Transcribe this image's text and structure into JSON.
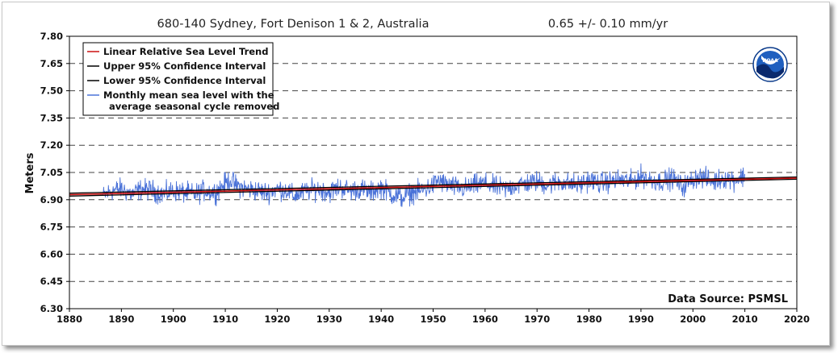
{
  "chart_data": {
    "type": "line",
    "title": "680-140 Sydney, Fort Denison 1 & 2, Australia",
    "subtitle": "0.65 +/-  0.10 mm/yr",
    "xlabel": "",
    "ylabel": "Meters",
    "xlim": [
      1880,
      2020
    ],
    "ylim": [
      6.3,
      7.8
    ],
    "x_ticks": [
      "1880",
      "1890",
      "1900",
      "1910",
      "1920",
      "1930",
      "1940",
      "1950",
      "1960",
      "1970",
      "1980",
      "1990",
      "2000",
      "2010",
      "2020"
    ],
    "y_ticks": [
      "7.80",
      "7.65",
      "7.50",
      "7.35",
      "7.20",
      "7.05",
      "6.90",
      "6.75",
      "6.60",
      "6.45",
      "6.30"
    ],
    "grid": "horizontal dashed",
    "legend_position": "top-left",
    "series": [
      {
        "name": "Linear Relative Sea Level Trend",
        "color": "#cc1111",
        "x": [
          1880,
          2020
        ],
        "y": [
          6.928,
          7.019
        ]
      },
      {
        "name": "Upper 95% Confidence Interval",
        "color": "#000000",
        "x": [
          1880,
          2020
        ],
        "y": [
          6.936,
          7.025
        ]
      },
      {
        "name": "Lower 95% Confidence Interval",
        "color": "#000000",
        "x": [
          1880,
          2020
        ],
        "y": [
          6.92,
          7.013
        ]
      },
      {
        "name": "Monthly mean sea level with the average seasonal cycle removed",
        "legend_lines": [
          "Monthly mean sea level with the",
          "average seasonal cycle removed"
        ],
        "color": "#4a72d8",
        "x": [
          1886.5,
          1888,
          1890,
          1892,
          1894,
          1896,
          1898,
          1900,
          1902,
          1904,
          1906,
          1908,
          1910,
          1911,
          1912,
          1914,
          1916,
          1918,
          1920,
          1922,
          1923,
          1924,
          1926,
          1928,
          1930,
          1932,
          1934,
          1936,
          1938,
          1940,
          1942,
          1944,
          1946,
          1948,
          1950,
          1951,
          1952,
          1954,
          1956,
          1958,
          1960,
          1962,
          1964,
          1966,
          1968,
          1970,
          1972,
          1974,
          1976,
          1978,
          1980,
          1982,
          1984,
          1986,
          1988,
          1990,
          1992,
          1994,
          1996,
          1998,
          2000,
          2001,
          2002,
          2004,
          2006,
          2008,
          2010
        ],
        "y": [
          6.92,
          6.95,
          6.96,
          6.93,
          6.96,
          6.95,
          6.93,
          6.95,
          6.94,
          6.93,
          6.95,
          6.94,
          6.99,
          7.01,
          6.98,
          6.96,
          6.95,
          6.94,
          6.96,
          6.95,
          6.92,
          6.93,
          6.95,
          6.96,
          6.94,
          6.97,
          6.95,
          6.96,
          6.94,
          6.97,
          6.93,
          6.91,
          6.94,
          6.95,
          6.98,
          7.01,
          6.99,
          6.97,
          6.96,
          6.98,
          6.99,
          6.97,
          6.96,
          6.98,
          6.99,
          7.0,
          6.98,
          7.0,
          6.99,
          6.98,
          7.01,
          6.99,
          7.0,
          7.01,
          7.0,
          7.03,
          7.01,
          7.0,
          7.02,
          6.97,
          7.01,
          7.03,
          7.02,
          7.0,
          7.02,
          7.01,
          7.03
        ],
        "monthly_amplitude": 0.05
      }
    ],
    "logo": "noaa-logo",
    "annotation": "Data Source: PSMSL"
  }
}
